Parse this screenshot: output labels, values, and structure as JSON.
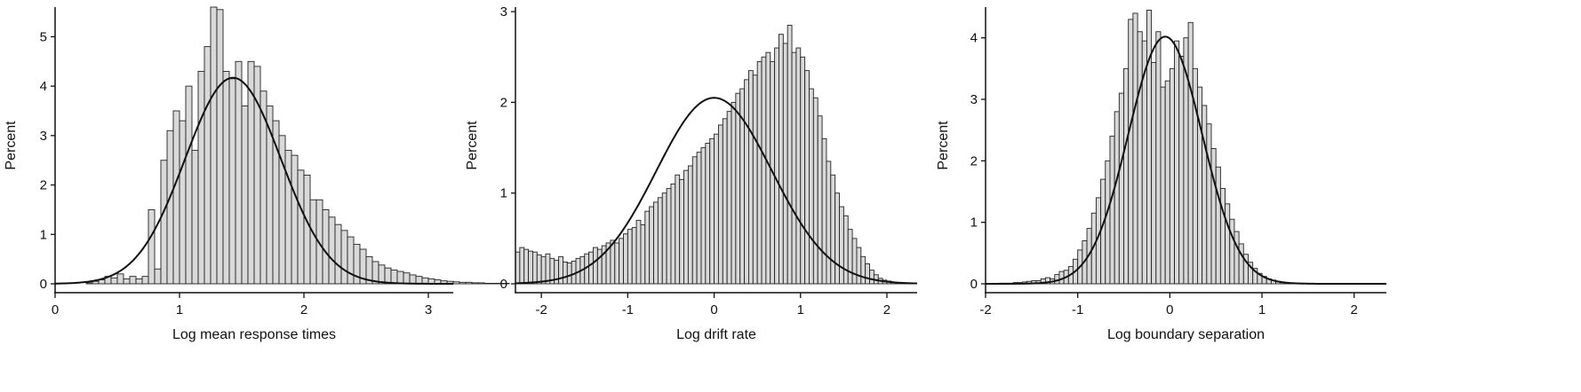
{
  "colors": {
    "bar_fill": "#d9d9d9",
    "bar_stroke": "#222222",
    "curve": "#111111",
    "axis": "#111111"
  },
  "chart_data": [
    {
      "type": "bar",
      "subtype": "histogram-with-normal-curve",
      "xlabel": "Log mean response times",
      "ylabel": "Percent",
      "xlim": [
        0,
        3.2
      ],
      "ylim": [
        0,
        5.6
      ],
      "xticks": [
        "0",
        "1",
        "2",
        "3"
      ],
      "yticks": [
        "0",
        "1",
        "2",
        "3",
        "4",
        "5"
      ],
      "bin_width": 0.05,
      "bins_start": 0.1,
      "values": [
        0,
        0,
        0,
        0.02,
        0.05,
        0.08,
        0.15,
        0.12,
        0.2,
        0.1,
        0.15,
        0.1,
        0.15,
        1.5,
        0.3,
        2.5,
        3.1,
        3.5,
        3.3,
        4.0,
        2.7,
        4.3,
        4.8,
        5.6,
        5.55,
        4.3,
        4.15,
        4.5,
        3.6,
        4.5,
        4.4,
        3.9,
        3.6,
        3.3,
        3.0,
        2.7,
        2.6,
        2.3,
        2.2,
        1.7,
        1.7,
        1.5,
        1.35,
        1.2,
        1.08,
        0.95,
        0.8,
        0.7,
        0.55,
        0.45,
        0.38,
        0.32,
        0.28,
        0.25,
        0.22,
        0.18,
        0.15,
        0.12,
        0.1,
        0.08,
        0.06,
        0.05,
        0.04,
        0.03,
        0.03,
        0.02,
        0.02,
        0.01,
        0.01,
        0.01,
        0.01
      ],
      "normal_curve": {
        "mean": 1.43,
        "sd": 0.385,
        "peak": 4.17
      }
    },
    {
      "type": "bar",
      "subtype": "histogram-with-normal-curve",
      "xlabel": "Log drift rate",
      "ylabel": "Percent",
      "xlim": [
        -2.3,
        2.35
      ],
      "ylim": [
        0,
        3.05
      ],
      "xticks": [
        "-2",
        "-1",
        "0",
        "1",
        "2"
      ],
      "yticks": [
        "0",
        "1",
        "2",
        "3"
      ],
      "bin_width": 0.05,
      "bins_start": -2.3,
      "values": [
        0.35,
        0.4,
        0.38,
        0.36,
        0.35,
        0.32,
        0.3,
        0.33,
        0.28,
        0.26,
        0.3,
        0.24,
        0.23,
        0.25,
        0.28,
        0.3,
        0.33,
        0.35,
        0.4,
        0.38,
        0.42,
        0.45,
        0.48,
        0.45,
        0.5,
        0.55,
        0.6,
        0.62,
        0.7,
        0.65,
        0.8,
        0.85,
        0.9,
        0.95,
        1.0,
        1.05,
        1.1,
        1.2,
        1.15,
        1.25,
        1.3,
        1.4,
        1.45,
        1.5,
        1.55,
        1.6,
        1.65,
        1.75,
        1.82,
        1.9,
        2.0,
        2.1,
        2.15,
        2.25,
        2.35,
        2.3,
        2.45,
        2.5,
        2.55,
        2.45,
        2.6,
        2.75,
        2.65,
        2.85,
        2.55,
        2.6,
        2.5,
        2.35,
        2.15,
        2.05,
        1.85,
        1.6,
        1.35,
        1.2,
        1.0,
        0.85,
        0.75,
        0.6,
        0.5,
        0.4,
        0.3,
        0.22,
        0.15,
        0.1,
        0.06,
        0.04,
        0.03,
        0.02,
        0.01,
        0.01,
        0.01,
        0.01
      ],
      "normal_curve": {
        "mean": 0.0,
        "sd": 0.67,
        "peak": 2.05
      }
    },
    {
      "type": "bar",
      "subtype": "histogram-with-normal-curve",
      "xlabel": "Log boundary separation",
      "ylabel": "Percent",
      "xlim": [
        -2.0,
        2.35
      ],
      "ylim": [
        0,
        4.5
      ],
      "xticks": [
        "-2",
        "-1",
        "0",
        "1",
        "2"
      ],
      "yticks": [
        "0",
        "1",
        "2",
        "3",
        "4"
      ],
      "bin_width": 0.05,
      "bins_start": -1.85,
      "values": [
        0.01,
        0.01,
        0.01,
        0.02,
        0.02,
        0.03,
        0.04,
        0.05,
        0.05,
        0.08,
        0.1,
        0.08,
        0.15,
        0.2,
        0.22,
        0.28,
        0.4,
        0.55,
        0.7,
        0.9,
        1.15,
        1.4,
        1.7,
        2.0,
        2.4,
        2.8,
        3.1,
        3.5,
        4.3,
        4.4,
        4.1,
        3.95,
        4.45,
        3.6,
        4.1,
        3.2,
        3.3,
        3.5,
        3.95,
        3.7,
        4.0,
        4.25,
        3.5,
        3.2,
        2.9,
        2.6,
        2.2,
        1.9,
        1.55,
        1.3,
        1.05,
        0.85,
        0.65,
        0.48,
        0.35,
        0.25,
        0.17,
        0.12,
        0.08,
        0.06,
        0.04,
        0.03,
        0.02,
        0.01,
        0.01,
        0.01
      ],
      "normal_curve": {
        "mean": -0.05,
        "sd": 0.4,
        "peak": 4.02
      }
    }
  ]
}
